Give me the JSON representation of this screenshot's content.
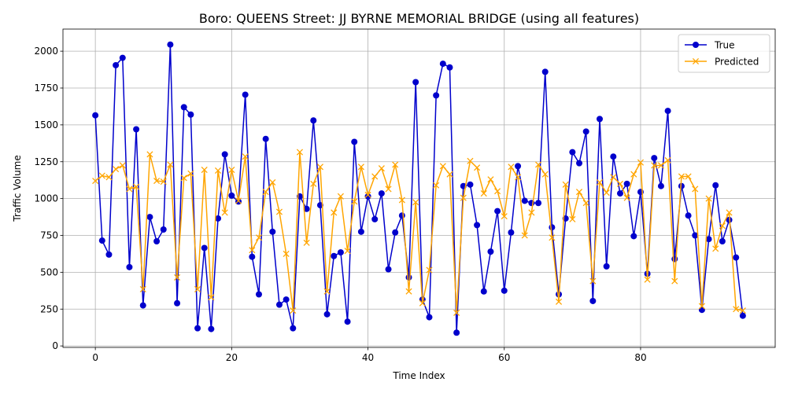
{
  "chart_data": {
    "type": "line",
    "title": "Boro: QUEENS Street: JJ BYRNE MEMORIAL BRIDGE (using all features)",
    "xlabel": "Time Index",
    "ylabel": "Traffic Volume",
    "xlim": [
      -4.75,
      99.75
    ],
    "ylim": [
      -10,
      2150
    ],
    "xticks": [
      0,
      20,
      40,
      60,
      80
    ],
    "yticks": [
      0,
      250,
      500,
      750,
      1000,
      1250,
      1500,
      1750,
      2000
    ],
    "grid": true,
    "legend_position": "top-right",
    "x": [
      0,
      1,
      2,
      3,
      4,
      5,
      6,
      7,
      8,
      9,
      10,
      11,
      12,
      13,
      14,
      15,
      16,
      17,
      18,
      19,
      20,
      21,
      22,
      23,
      24,
      25,
      26,
      27,
      28,
      29,
      30,
      31,
      32,
      33,
      34,
      35,
      36,
      37,
      38,
      39,
      40,
      41,
      42,
      43,
      44,
      45,
      46,
      47,
      48,
      49,
      50,
      51,
      52,
      53,
      54,
      55,
      56,
      57,
      58,
      59,
      60,
      61,
      62,
      63,
      64,
      65,
      66,
      67,
      68,
      69,
      70,
      71,
      72,
      73,
      74,
      75,
      76,
      77,
      78,
      79,
      80,
      81,
      82,
      83,
      84,
      85,
      86,
      87,
      88,
      89,
      90,
      91,
      92,
      93,
      94,
      95
    ],
    "series": [
      {
        "name": "True",
        "color": "#0000cc",
        "marker": "circle",
        "values": [
          1565,
          715,
          620,
          1905,
          1955,
          535,
          1470,
          275,
          875,
          710,
          790,
          2045,
          290,
          1620,
          1570,
          120,
          665,
          115,
          865,
          1300,
          1020,
          980,
          1705,
          605,
          350,
          1405,
          775,
          280,
          315,
          120,
          1015,
          930,
          1530,
          955,
          215,
          610,
          635,
          165,
          1385,
          775,
          1015,
          860,
          1035,
          520,
          770,
          885,
          465,
          1790,
          315,
          195,
          1700,
          1915,
          1890,
          90,
          1085,
          1095,
          820,
          370,
          640,
          915,
          375,
          770,
          1220,
          985,
          970,
          970,
          1860,
          805,
          350,
          865,
          1315,
          1240,
          1455,
          305,
          1540,
          540,
          1285,
          1035,
          1100,
          745,
          1045,
          490,
          1275,
          1085,
          1595,
          590,
          1085,
          885,
          750,
          245,
          725,
          1090,
          710,
          855,
          600,
          205
        ]
      },
      {
        "name": "Predicted",
        "color": "#ffa500",
        "marker": "x",
        "values": [
          1120,
          1155,
          1145,
          1200,
          1225,
          1065,
          1080,
          385,
          1300,
          1120,
          1115,
          1230,
          465,
          1140,
          1170,
          385,
          1195,
          330,
          1190,
          905,
          1195,
          985,
          1285,
          650,
          735,
          1045,
          1110,
          910,
          625,
          240,
          1315,
          700,
          1100,
          1215,
          370,
          905,
          1015,
          645,
          980,
          1215,
          1025,
          1150,
          1205,
          1065,
          1230,
          990,
          370,
          975,
          290,
          515,
          1090,
          1220,
          1165,
          225,
          1005,
          1255,
          1210,
          1035,
          1130,
          1050,
          880,
          1215,
          1145,
          750,
          905,
          1230,
          1165,
          735,
          300,
          1095,
          860,
          1045,
          970,
          440,
          1110,
          1040,
          1145,
          1100,
          1005,
          1165,
          1245,
          450,
          1225,
          1225,
          1260,
          440,
          1150,
          1150,
          1065,
          270,
          1000,
          660,
          815,
          905,
          250,
          240
        ]
      }
    ]
  }
}
